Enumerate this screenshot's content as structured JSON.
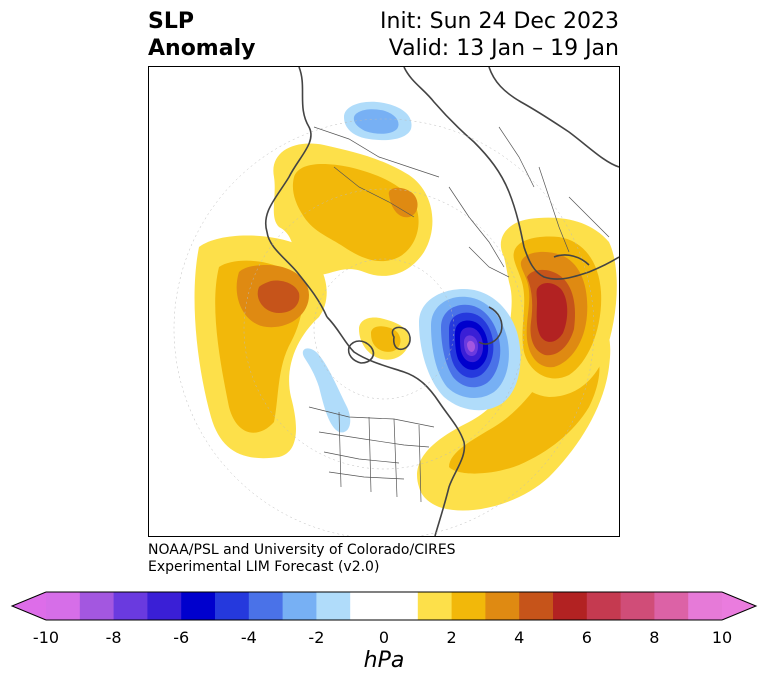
{
  "title": {
    "left_line1": "SLP",
    "left_line2": "Anomaly",
    "right_line1": "Init: Sun 24 Dec 2023",
    "right_line2": "Valid: 13 Jan – 19 Jan"
  },
  "credit": {
    "line1": "NOAA/PSL and University of Colorado/CIRES",
    "line2": "Experimental LIM Forecast (v2.0)"
  },
  "colorbar": {
    "units": "hPa",
    "tick_labels": [
      "-10",
      "-8",
      "-6",
      "-4",
      "-2",
      "0",
      "2",
      "4",
      "6",
      "8",
      "10"
    ],
    "colors": [
      "#d66ee8",
      "#a357e0",
      "#6a3adf",
      "#3a1fd6",
      "#0000cd",
      "#2539dd",
      "#4a72e8",
      "#77b0f4",
      "#b0dcfa",
      "#ffffff",
      "#ffffff",
      "#fde04a",
      "#f2b80a",
      "#df8a12",
      "#c6541a",
      "#b22222",
      "#c53a50",
      "#d04d78",
      "#dc62a6",
      "#e67ad8"
    ],
    "min_extend_color": "#dd6de9",
    "max_extend_color": "#ea7cde"
  },
  "map": {
    "projection": "north-polar-stereographic",
    "variable": "sea-level-pressure-anomaly",
    "anomaly_centers_hpa": [
      {
        "region": "north-atlantic",
        "min": -9
      },
      {
        "region": "western-russia",
        "max": 6
      },
      {
        "region": "northeast-pacific",
        "max": 5
      },
      {
        "region": "east-siberia",
        "max": 4
      },
      {
        "region": "western-atlantic",
        "max": 3
      },
      {
        "region": "east-asia",
        "min": -3
      },
      {
        "region": "west-coast-north-america",
        "min": -2
      }
    ]
  }
}
